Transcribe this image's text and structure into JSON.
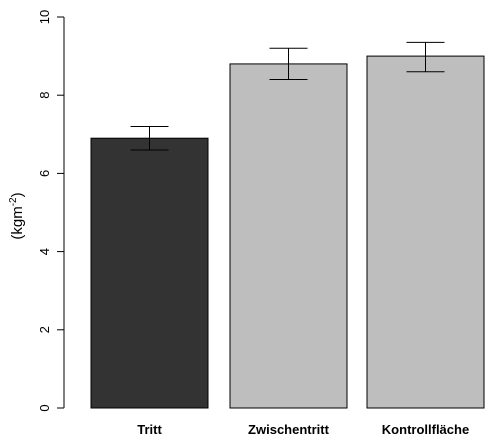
{
  "chart_data": {
    "type": "bar",
    "categories": [
      "Tritt",
      "Zwischentritt",
      "Kontrollfläche"
    ],
    "values": [
      6.9,
      8.8,
      9.0
    ],
    "error_upper": [
      7.2,
      9.2,
      9.35
    ],
    "error_lower": [
      6.6,
      8.4,
      8.6
    ],
    "bar_colors": [
      "#333333",
      "#bebebe",
      "#bebebe"
    ],
    "ylabel_main": "(kgm",
    "ylabel_sup": "-2",
    "ylabel_close": ")",
    "ylim": [
      0,
      10
    ],
    "yticks": [
      0,
      2,
      4,
      6,
      8,
      10
    ],
    "grid": false,
    "legend": false
  }
}
